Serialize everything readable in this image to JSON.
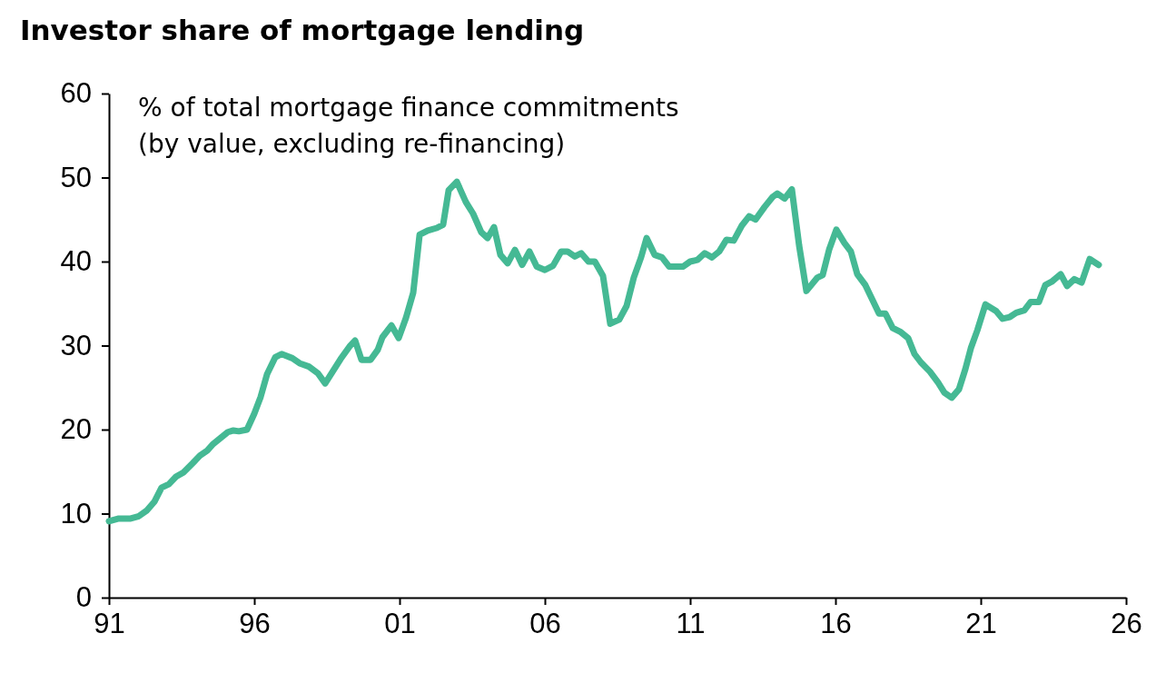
{
  "chart_data": {
    "type": "line",
    "title": "Investor share of mortgage lending",
    "subtitle": "% of total mortgage finance commitments\n(by value, excluding re-financing)",
    "x": [
      1991.0,
      1991.31,
      1991.72,
      1992.03,
      1992.31,
      1992.56,
      1992.81,
      1993.06,
      1993.31,
      1993.56,
      1993.88,
      1994.13,
      1994.38,
      1994.59,
      1994.84,
      1995.09,
      1995.28,
      1995.47,
      1995.75,
      1996.0,
      1996.22,
      1996.44,
      1996.72,
      1996.94,
      1997.31,
      1997.56,
      1997.88,
      1998.19,
      1998.44,
      1998.97,
      1999.28,
      1999.47,
      1999.69,
      2000.0,
      2000.25,
      2000.41,
      2000.72,
      2000.97,
      2001.22,
      2001.47,
      2001.69,
      2001.97,
      2002.28,
      2002.5,
      2002.69,
      2002.97,
      2003.28,
      2003.53,
      2003.81,
      2004.03,
      2004.25,
      2004.47,
      2004.72,
      2004.97,
      2005.22,
      2005.47,
      2005.72,
      2006.0,
      2006.28,
      2006.56,
      2006.78,
      2007.03,
      2007.25,
      2007.5,
      2007.72,
      2008.0,
      2008.25,
      2008.56,
      2008.81,
      2009.06,
      2009.31,
      2009.5,
      2009.78,
      2010.03,
      2010.28,
      2010.75,
      2011.0,
      2011.25,
      2011.5,
      2011.75,
      2012.0,
      2012.25,
      2012.5,
      2012.78,
      2013.03,
      2013.25,
      2013.56,
      2013.84,
      2014.0,
      2014.25,
      2014.5,
      2014.75,
      2015.0,
      2015.38,
      2015.56,
      2015.78,
      2016.03,
      2016.31,
      2016.53,
      2016.75,
      2017.03,
      2017.5,
      2017.72,
      2017.97,
      2018.25,
      2018.5,
      2018.72,
      2018.94,
      2019.25,
      2019.53,
      2019.75,
      2020.0,
      2020.25,
      2020.47,
      2020.66,
      2020.88,
      2021.16,
      2021.53,
      2021.75,
      2022.0,
      2022.22,
      2022.5,
      2022.72,
      2023.0,
      2023.22,
      2023.44,
      2023.75,
      2023.97,
      2024.22,
      2024.47,
      2024.75,
      2025.06
    ],
    "series": [
      {
        "color": "#45b994",
        "values": [
          9.1,
          9.4,
          9.4,
          9.7,
          10.4,
          11.4,
          13.1,
          13.5,
          14.4,
          14.9,
          16.0,
          16.9,
          17.5,
          18.3,
          19.0,
          19.7,
          19.9,
          19.8,
          20.0,
          21.9,
          23.9,
          26.6,
          28.6,
          29.0,
          28.5,
          27.9,
          27.5,
          26.7,
          25.5,
          28.4,
          29.9,
          30.6,
          28.3,
          28.3,
          29.5,
          31.0,
          32.4,
          30.9,
          33.3,
          36.3,
          43.2,
          43.7,
          44.0,
          44.4,
          48.5,
          49.5,
          47.1,
          45.7,
          43.5,
          42.8,
          44.1,
          40.8,
          39.8,
          41.4,
          39.6,
          41.2,
          39.4,
          39.0,
          39.5,
          41.2,
          41.2,
          40.6,
          41.0,
          40.0,
          40.0,
          38.3,
          32.6,
          33.1,
          34.7,
          38.1,
          40.5,
          42.8,
          40.8,
          40.5,
          39.4,
          39.4,
          40.0,
          40.2,
          41.0,
          40.5,
          41.2,
          42.6,
          42.5,
          44.3,
          45.4,
          45.0,
          46.5,
          47.7,
          48.1,
          47.5,
          48.6,
          41.9,
          36.5,
          38.1,
          38.4,
          41.4,
          43.8,
          42.2,
          41.2,
          38.5,
          37.2,
          33.8,
          33.8,
          32.1,
          31.6,
          30.9,
          29.0,
          28.0,
          26.9,
          25.6,
          24.4,
          23.8,
          24.8,
          27.2,
          29.7,
          31.8,
          34.9,
          34.1,
          33.2,
          33.4,
          33.9,
          34.2,
          35.2,
          35.2,
          37.2,
          37.6,
          38.5,
          37.1,
          37.9,
          37.5,
          40.3,
          39.6
        ]
      }
    ],
    "xlim": [
      1991,
      2026
    ],
    "xticks": [
      {
        "value": 1991,
        "label": "91"
      },
      {
        "value": 1996,
        "label": "96"
      },
      {
        "value": 2001,
        "label": "01"
      },
      {
        "value": 2006,
        "label": "06"
      },
      {
        "value": 2011,
        "label": "11"
      },
      {
        "value": 2016,
        "label": "16"
      },
      {
        "value": 2021,
        "label": "21"
      },
      {
        "value": 2026,
        "label": "26"
      }
    ],
    "ylim": [
      0,
      60
    ],
    "yticks": [
      0,
      10,
      20,
      30,
      40,
      50,
      60
    ],
    "marker": "none",
    "line_style": "solid"
  }
}
